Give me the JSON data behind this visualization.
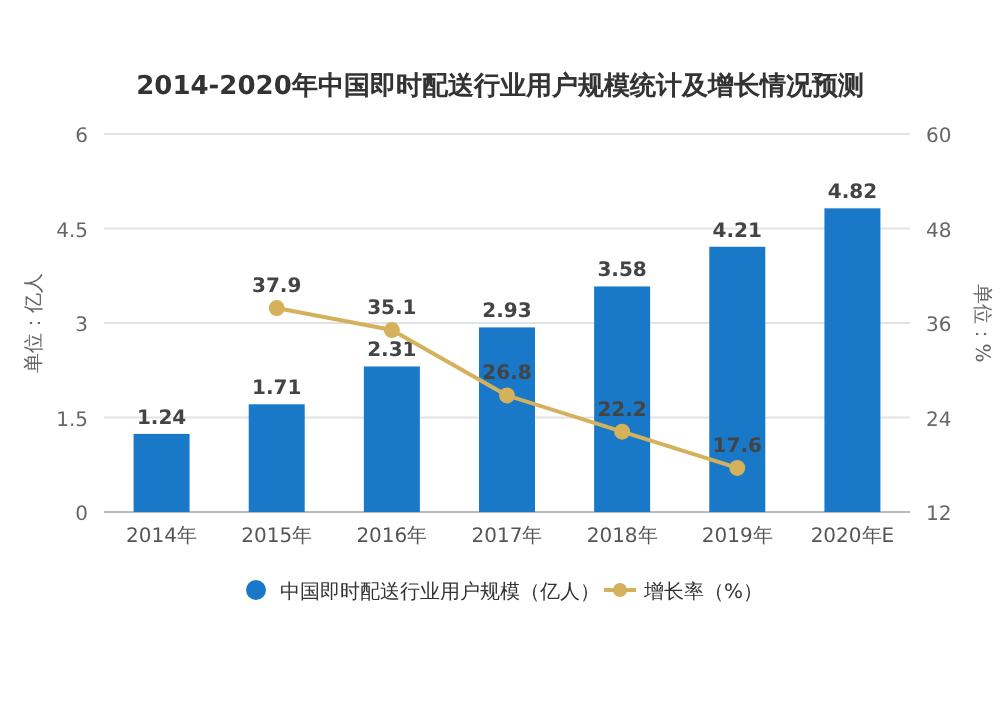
{
  "chart_data": {
    "type": "bar",
    "title": "2014-2020年中国即时配送行业用户规模统计及增长情况预测",
    "ylabel": "单位：亿人",
    "y2label": "单位：%",
    "categories": [
      "2014年",
      "2015年",
      "2016年",
      "2017年",
      "2018年",
      "2019年",
      "2020年E"
    ],
    "series": [
      {
        "name": "中国即时配送行业用户规模（亿人）",
        "color": "#1a78c8",
        "values": [
          1.24,
          1.71,
          2.31,
          2.93,
          3.58,
          4.21,
          4.82
        ]
      },
      {
        "type": "line",
        "axis": "y2",
        "name": "增长率（%）",
        "color": "#d4b15a",
        "values": [
          null,
          37.9,
          35.1,
          26.8,
          22.2,
          17.6,
          null
        ]
      }
    ],
    "ylim": [
      0,
      6
    ],
    "yticks": [
      0,
      1.5,
      3,
      4.5,
      6
    ],
    "y2lim": [
      12,
      60
    ],
    "y2ticks": [
      12,
      24,
      36,
      48,
      60
    ],
    "grid": "y",
    "legend": "bottom",
    "data_labels": true,
    "marker": "circle"
  }
}
